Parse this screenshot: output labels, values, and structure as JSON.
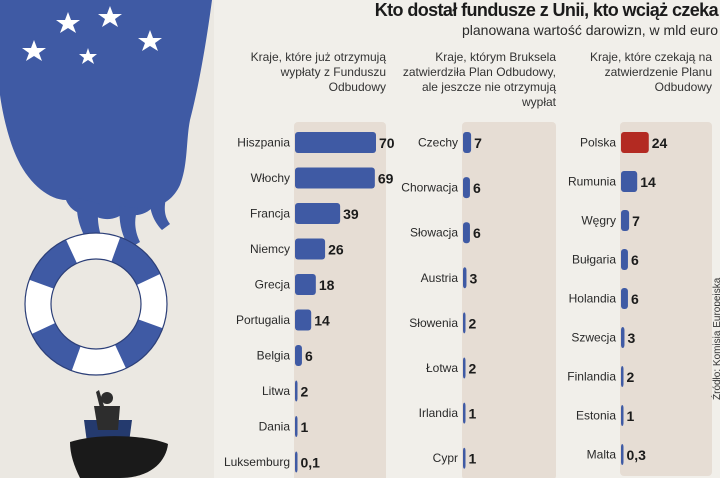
{
  "title": "Kto dostał fundusze z Unii, kto wciąż czeka",
  "subtitle": "planowana wartość darowizn, w mld euro",
  "source": "Źródło: Komisja Europejska",
  "colors": {
    "bar": "#3f5aa4",
    "highlight": "#b32a22",
    "panel": "#e6ddd4",
    "background": "#f1efea"
  },
  "chart_data": [
    {
      "type": "bar",
      "orientation": "horizontal",
      "title": "Kraje, które już otrzymują wypłaty z Funduszu Odbudowy",
      "categories": [
        "Hiszpania",
        "Włochy",
        "Francja",
        "Niemcy",
        "Grecja",
        "Portugalia",
        "Belgia",
        "Litwa",
        "Dania",
        "Luksemburg"
      ],
      "values": [
        70,
        69,
        39,
        26,
        18,
        14,
        6,
        2,
        1,
        0.1
      ],
      "value_labels": [
        "70",
        "69",
        "39",
        "26",
        "18",
        "14",
        "6",
        "2",
        "1",
        "0,1"
      ],
      "xlim": [
        0,
        70
      ],
      "grid": false
    },
    {
      "type": "bar",
      "orientation": "horizontal",
      "title": "Kraje, którym Bruksela zatwierdziła Plan Odbudowy, ale jeszcze nie otrzymują wypłat",
      "categories": [
        "Czechy",
        "Chorwacja",
        "Słowacja",
        "Austria",
        "Słowenia",
        "Łotwa",
        "Irlandia",
        "Cypr"
      ],
      "values": [
        7,
        6,
        6,
        3,
        2,
        2,
        1,
        1
      ],
      "value_labels": [
        "7",
        "6",
        "6",
        "3",
        "2",
        "2",
        "1",
        "1"
      ],
      "xlim": [
        0,
        70
      ],
      "grid": false
    },
    {
      "type": "bar",
      "orientation": "horizontal",
      "title": "Kraje, które czekają na zatwierdzenie Planu Odbudowy",
      "categories": [
        "Polska",
        "Rumunia",
        "Węgry",
        "Bułgaria",
        "Holandia",
        "Szwecja",
        "Finlandia",
        "Estonia",
        "Malta"
      ],
      "values": [
        24,
        14,
        7,
        6,
        6,
        3,
        2,
        1,
        0.3
      ],
      "value_labels": [
        "24",
        "14",
        "7",
        "6",
        "6",
        "3",
        "2",
        "1",
        "0,3"
      ],
      "highlight": [
        "Polska"
      ],
      "xlim": [
        0,
        70
      ],
      "grid": false
    }
  ]
}
